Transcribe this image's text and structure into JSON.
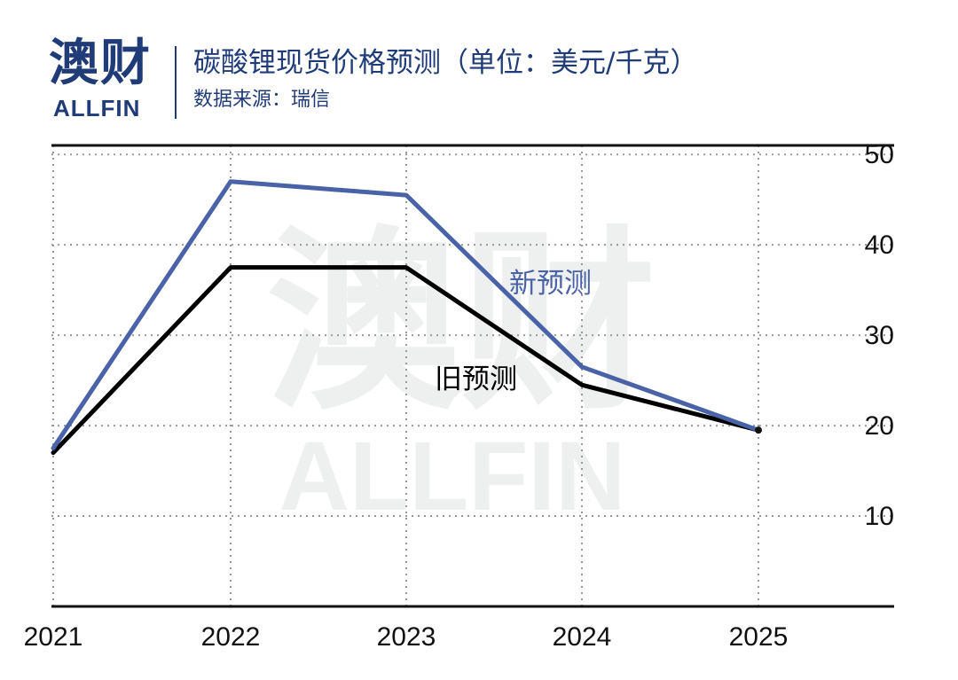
{
  "logo": {
    "cn": "澳财",
    "en": "ALLFIN"
  },
  "watermark": {
    "cn": "澳财",
    "en": "ALLFIN"
  },
  "title": "碳酸锂现货价格预测（单位：美元/千克）",
  "source": "数据来源：瑞信",
  "colors": {
    "new": "#4a63a8",
    "old": "#000000",
    "brand": "#1f3b78"
  },
  "chart_data": {
    "type": "line",
    "categories": [
      "2021",
      "2022",
      "2023",
      "2024",
      "2025"
    ],
    "yticks": [
      10,
      20,
      30,
      40,
      50
    ],
    "ylim": [
      0,
      51
    ],
    "grid": true,
    "series": [
      {
        "name": "新预测",
        "values": [
          17.5,
          47,
          45.5,
          26.5,
          19.5
        ]
      },
      {
        "name": "旧预测",
        "values": [
          17,
          37.5,
          37.5,
          24.5,
          19.5
        ]
      }
    ]
  }
}
